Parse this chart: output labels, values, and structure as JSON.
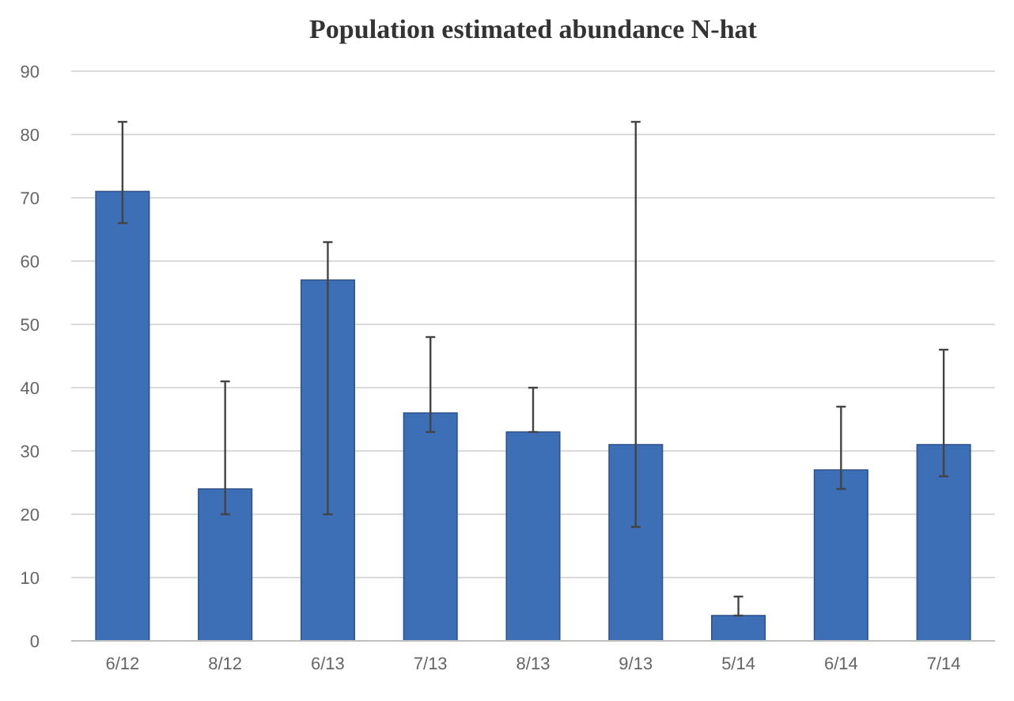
{
  "chart_data": {
    "type": "bar",
    "title": "Population estimated abundance N-hat",
    "categories": [
      "6/12",
      "8/12",
      "6/13",
      "7/13",
      "8/13",
      "9/13",
      "5/14",
      "6/14",
      "7/14"
    ],
    "values": [
      71,
      24,
      57,
      36,
      33,
      31,
      4,
      27,
      31
    ],
    "errors": [
      [
        66,
        82
      ],
      [
        20,
        41
      ],
      [
        20,
        63
      ],
      [
        33,
        48
      ],
      [
        33,
        40
      ],
      [
        18,
        82
      ],
      [
        4,
        7
      ],
      [
        24,
        37
      ],
      [
        26,
        46
      ]
    ],
    "color": "#3d6fb6",
    "ylim": [
      0,
      90
    ],
    "yticks": [
      0,
      10,
      20,
      30,
      40,
      50,
      60,
      70,
      80,
      90
    ],
    "grid": "y"
  }
}
